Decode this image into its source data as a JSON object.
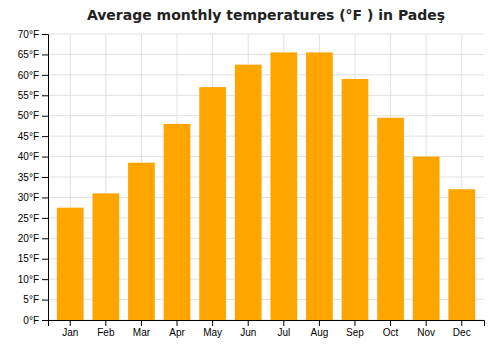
{
  "chart_data": {
    "type": "bar",
    "title": "Average monthly temperatures (°F ) in Padeş",
    "categories": [
      "Jan",
      "Feb",
      "Mar",
      "Apr",
      "May",
      "Jun",
      "Jul",
      "Aug",
      "Sep",
      "Oct",
      "Nov",
      "Dec"
    ],
    "values": [
      27.5,
      31,
      38.5,
      48,
      57,
      62.5,
      65.5,
      65.5,
      59,
      49.5,
      40,
      32
    ],
    "color": "#FFA500",
    "ylim": [
      0,
      70
    ],
    "yticks": [
      {
        "value": 0,
        "label": "0°F"
      },
      {
        "value": 5,
        "label": "5°F"
      },
      {
        "value": 10,
        "label": "10°F"
      },
      {
        "value": 15,
        "label": "15°F"
      },
      {
        "value": 20,
        "label": "20°F"
      },
      {
        "value": 25,
        "label": "25°F"
      },
      {
        "value": 30,
        "label": "30°F"
      },
      {
        "value": 35,
        "label": "35°F"
      },
      {
        "value": 40,
        "label": "40°F"
      },
      {
        "value": 45,
        "label": "45°F"
      },
      {
        "value": 50,
        "label": "50°F"
      },
      {
        "value": 55,
        "label": "55°F"
      },
      {
        "value": 60,
        "label": "60°F"
      },
      {
        "value": 65,
        "label": "65°F"
      },
      {
        "value": 70,
        "label": "70°F"
      }
    ],
    "grid": true
  }
}
